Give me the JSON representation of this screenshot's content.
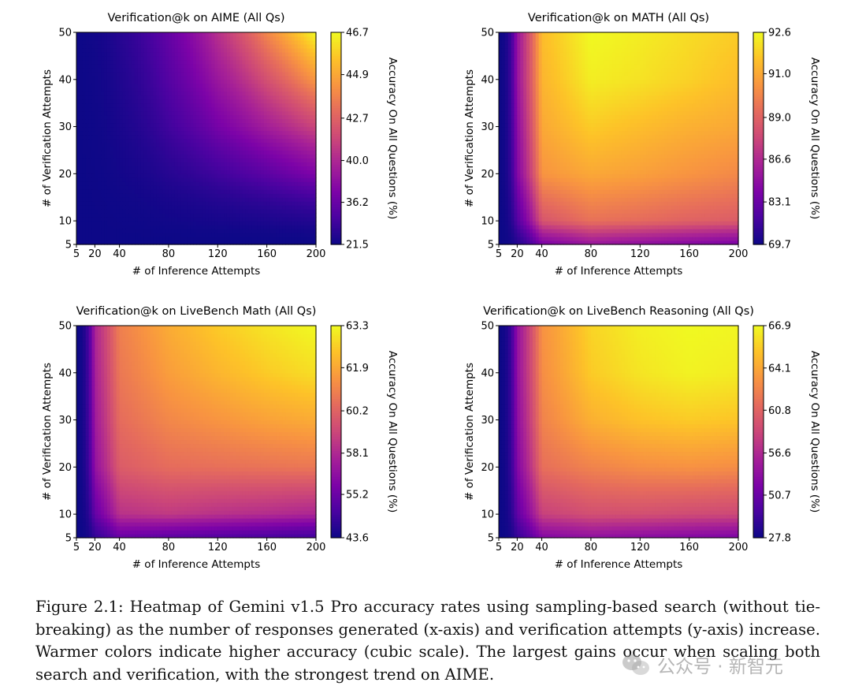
{
  "colorbar_label": "Accuracy On All Questions (%)",
  "caption": "Figure 2.1: Heatmap of Gemini v1.5 Pro accuracy rates using sampling-based search (without tie-breaking) as the number of responses generated (x-axis) and verification attempts (y-axis) increase. Warmer colors indicate higher accuracy (cubic scale). The largest gains occur when scaling both search and verification, with the strongest trend on AIME.",
  "watermark": "公众号 · 新智元",
  "watermark_icon": "wechat-logo-icon",
  "colormap": "plasma",
  "chart_data": [
    {
      "type": "heatmap",
      "title": "Verification@k on AIME (All Qs)",
      "xlabel": "# of Inference Attempts",
      "ylabel": "# of Verification Attempts",
      "x_ticks": [
        5,
        20,
        40,
        80,
        120,
        160,
        200
      ],
      "y_ticks": [
        5,
        10,
        20,
        30,
        40,
        50
      ],
      "xlim": [
        5,
        200
      ],
      "ylim": [
        5,
        50
      ],
      "colorbar_ticks": [
        21.5,
        36.2,
        40.0,
        42.7,
        44.9,
        46.7
      ],
      "x": [
        5,
        40,
        80,
        120,
        160,
        200
      ],
      "y": [
        5,
        10,
        20,
        30,
        40,
        50
      ],
      "z": [
        [
          22.0,
          22.5,
          23.0,
          23.5,
          24.0,
          24.5
        ],
        [
          22.5,
          25.0,
          27.0,
          28.5,
          29.5,
          30.5
        ],
        [
          23.0,
          27.5,
          31.0,
          33.5,
          35.5,
          37.5
        ],
        [
          23.5,
          29.0,
          33.5,
          37.0,
          39.5,
          41.5
        ],
        [
          24.0,
          30.0,
          35.0,
          39.0,
          42.0,
          44.5
        ],
        [
          24.5,
          31.0,
          36.0,
          40.5,
          44.0,
          46.7
        ]
      ]
    },
    {
      "type": "heatmap",
      "title": "Verification@k on MATH (All Qs)",
      "xlabel": "# of Inference Attempts",
      "ylabel": "# of Verification Attempts",
      "x_ticks": [
        5,
        20,
        40,
        80,
        120,
        160,
        200
      ],
      "y_ticks": [
        5,
        10,
        20,
        30,
        40,
        50
      ],
      "xlim": [
        5,
        200
      ],
      "ylim": [
        5,
        50
      ],
      "colorbar_ticks": [
        69.7,
        83.1,
        86.6,
        89.0,
        91.0,
        92.6
      ],
      "x": [
        5,
        20,
        40,
        80,
        120,
        160,
        200
      ],
      "y": [
        5,
        10,
        20,
        30,
        40,
        50
      ],
      "z": [
        [
          70.0,
          78.0,
          84.0,
          85.5,
          85.0,
          84.5,
          84.0
        ],
        [
          70.5,
          82.0,
          88.5,
          89.5,
          89.3,
          89.0,
          88.8
        ],
        [
          71.0,
          84.5,
          90.5,
          91.0,
          90.8,
          90.5,
          90.2
        ],
        [
          71.0,
          85.0,
          91.0,
          91.8,
          91.5,
          91.2,
          91.0
        ],
        [
          71.0,
          85.5,
          91.3,
          92.4,
          92.2,
          91.9,
          91.5
        ],
        [
          71.0,
          85.5,
          91.5,
          92.6,
          92.4,
          92.1,
          91.8
        ]
      ]
    },
    {
      "type": "heatmap",
      "title": "Verification@k on LiveBench Math (All Qs)",
      "xlabel": "# of Inference Attempts",
      "ylabel": "# of Verification Attempts",
      "x_ticks": [
        5,
        20,
        40,
        80,
        120,
        160,
        200
      ],
      "y_ticks": [
        5,
        10,
        20,
        30,
        40,
        50
      ],
      "xlim": [
        5,
        200
      ],
      "ylim": [
        5,
        50
      ],
      "colorbar_ticks": [
        43.6,
        55.2,
        58.1,
        60.2,
        61.9,
        63.3
      ],
      "x": [
        5,
        20,
        40,
        80,
        120,
        160,
        200
      ],
      "y": [
        5,
        10,
        20,
        30,
        40,
        50
      ],
      "z": [
        [
          44.0,
          52.0,
          55.0,
          54.5,
          54.0,
          53.5,
          53.0
        ],
        [
          44.5,
          55.0,
          58.5,
          58.8,
          58.5,
          58.3,
          58.0
        ],
        [
          45.0,
          57.0,
          60.0,
          60.5,
          60.6,
          60.7,
          60.8
        ],
        [
          45.0,
          57.5,
          60.5,
          61.2,
          61.5,
          61.8,
          62.0
        ],
        [
          45.0,
          57.8,
          60.8,
          61.7,
          62.2,
          62.6,
          62.9
        ],
        [
          45.0,
          58.0,
          61.0,
          62.0,
          62.6,
          63.0,
          63.3
        ]
      ]
    },
    {
      "type": "heatmap",
      "title": "Verification@k on LiveBench Reasoning (All Qs)",
      "xlabel": "# of Inference Attempts",
      "ylabel": "# of Verification Attempts",
      "x_ticks": [
        5,
        20,
        40,
        80,
        120,
        160,
        200
      ],
      "y_ticks": [
        5,
        10,
        20,
        30,
        40,
        50
      ],
      "xlim": [
        5,
        200
      ],
      "ylim": [
        5,
        50
      ],
      "colorbar_ticks": [
        27.8,
        50.7,
        56.6,
        60.8,
        64.1,
        66.9
      ],
      "x": [
        5,
        20,
        40,
        80,
        120,
        160,
        200
      ],
      "y": [
        5,
        10,
        20,
        30,
        40,
        50
      ],
      "z": [
        [
          28.5,
          45.0,
          53.0,
          54.0,
          53.5,
          53.0,
          52.5
        ],
        [
          29.0,
          50.0,
          58.5,
          59.5,
          59.5,
          59.2,
          59.0
        ],
        [
          29.5,
          53.0,
          61.5,
          62.5,
          63.0,
          63.2,
          63.0
        ],
        [
          29.5,
          54.0,
          62.5,
          64.5,
          65.2,
          65.5,
          65.3
        ],
        [
          29.5,
          54.5,
          63.0,
          65.5,
          66.3,
          66.7,
          66.5
        ],
        [
          29.5,
          54.5,
          63.2,
          65.8,
          66.6,
          66.9,
          66.8
        ]
      ]
    }
  ]
}
